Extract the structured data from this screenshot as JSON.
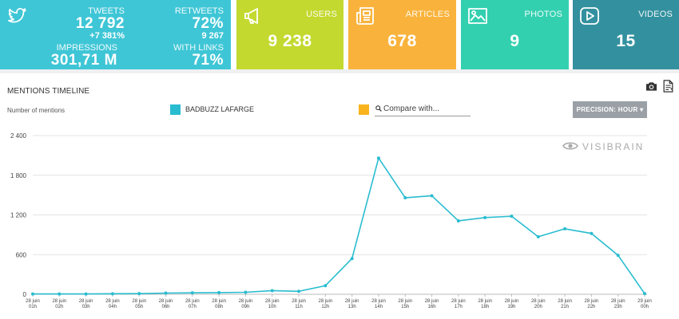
{
  "twitter": {
    "icon": "twitter-bird-icon",
    "tweets_label": "TWEETS",
    "tweets_value": "12 792",
    "tweets_delta": "+7 381%",
    "retweets_label": "RETWEETS",
    "retweets_value": "72%",
    "retweets_count": "9 267",
    "impressions_label": "IMPRESSIONS",
    "impressions_value": "301,71 M",
    "links_label": "WITH LINKS",
    "links_value": "71%"
  },
  "tiles": {
    "users": {
      "label": "USERS",
      "value": "9 238",
      "icon": "megaphone-icon",
      "color": "#c3d92f"
    },
    "articles": {
      "label": "ARTICLES",
      "value": "678",
      "icon": "newspaper-icon",
      "color": "#f9b33c"
    },
    "photos": {
      "label": "PHOTOS",
      "value": "9",
      "icon": "image-icon",
      "color": "#33d0b0"
    },
    "videos": {
      "label": "VIDEOS",
      "value": "15",
      "icon": "play-icon",
      "color": "#33919f"
    }
  },
  "section": {
    "title": "MENTIONS TIMELINE",
    "y_axis_title": "Number of mentions",
    "legend_name": "BADBUZZ LAFARGE",
    "legend_color": "#29bcd0",
    "compare_color": "#f9b31c",
    "compare_placeholder": "Compare with...",
    "precision_label": "PRECISION: HOUR ▾",
    "watermark": "VISIBRAIN"
  },
  "chart_data": {
    "type": "line",
    "ylim": [
      0,
      2400
    ],
    "yticks": [
      "0",
      "600",
      "1 200",
      "1 800",
      "2 400"
    ],
    "categories": [
      [
        "28 juin",
        "01h"
      ],
      [
        "28 juin",
        "02h"
      ],
      [
        "28 juin",
        "03h"
      ],
      [
        "28 juin",
        "04h"
      ],
      [
        "28 juin",
        "05h"
      ],
      [
        "28 juin",
        "06h"
      ],
      [
        "28 juin",
        "07h"
      ],
      [
        "28 juin",
        "08h"
      ],
      [
        "28 juin",
        "09h"
      ],
      [
        "28 juin",
        "10h"
      ],
      [
        "28 juin",
        "11h"
      ],
      [
        "28 juin",
        "12h"
      ],
      [
        "28 juin",
        "13h"
      ],
      [
        "28 juin",
        "14h"
      ],
      [
        "28 juin",
        "15h"
      ],
      [
        "28 juin",
        "16h"
      ],
      [
        "28 juin",
        "17h"
      ],
      [
        "28 juin",
        "18h"
      ],
      [
        "28 juin",
        "19h"
      ],
      [
        "28 juin",
        "20h"
      ],
      [
        "28 juin",
        "21h"
      ],
      [
        "28 juin",
        "22h"
      ],
      [
        "28 juin",
        "23h"
      ],
      [
        "29 juin",
        "00h"
      ]
    ],
    "series": [
      {
        "name": "BADBUZZ LAFARGE",
        "color": "#29bcd0",
        "values": [
          5,
          5,
          5,
          8,
          10,
          18,
          22,
          25,
          30,
          55,
          45,
          130,
          540,
          2060,
          1460,
          1490,
          1110,
          1160,
          1180,
          870,
          990,
          920,
          590,
          10
        ]
      }
    ]
  }
}
